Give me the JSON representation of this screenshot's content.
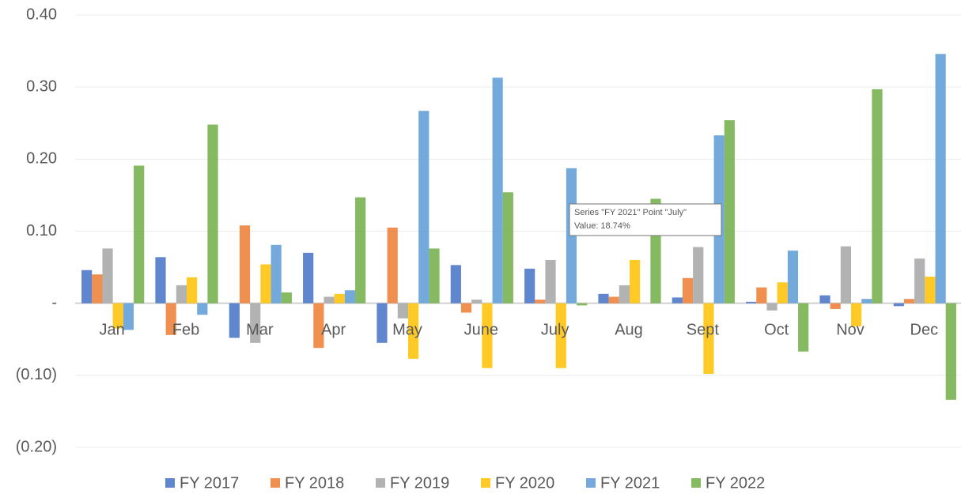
{
  "chart_data": {
    "type": "bar",
    "categories": [
      "Jan",
      "Feb",
      "Mar",
      "Apr",
      "May",
      "June",
      "July",
      "Aug",
      "Sept",
      "Oct",
      "Nov",
      "Dec"
    ],
    "series": [
      {
        "name": "FY 2017",
        "color": "#4472c4",
        "values": [
          0.046,
          0.064,
          -0.048,
          0.07,
          -0.055,
          0.053,
          0.048,
          0.013,
          0.008,
          0.002,
          0.011,
          -0.004
        ]
      },
      {
        "name": "FY 2018",
        "color": "#ed7d31",
        "values": [
          0.04,
          -0.044,
          0.108,
          -0.062,
          0.105,
          -0.013,
          0.005,
          0.009,
          0.035,
          0.022,
          -0.008,
          0.006
        ]
      },
      {
        "name": "FY 2019",
        "color": "#a5a5a5",
        "values": [
          0.076,
          0.025,
          -0.055,
          0.009,
          -0.021,
          0.005,
          0.06,
          0.025,
          0.078,
          -0.01,
          0.079,
          0.062
        ]
      },
      {
        "name": "FY 2020",
        "color": "#ffc000",
        "values": [
          -0.035,
          0.036,
          0.054,
          0.013,
          -0.077,
          -0.09,
          -0.09,
          0.06,
          -0.098,
          0.029,
          -0.032,
          0.037
        ]
      },
      {
        "name": "FY 2021",
        "color": "#5b9bd5",
        "values": [
          -0.037,
          -0.016,
          0.081,
          0.018,
          0.267,
          0.313,
          0.1874,
          0.0,
          0.233,
          0.073,
          0.006,
          0.346
        ]
      },
      {
        "name": "FY 2022",
        "color": "#70ad47",
        "values": [
          0.191,
          0.248,
          0.015,
          0.147,
          0.076,
          0.154,
          -0.003,
          0.145,
          0.254,
          -0.067,
          0.297,
          -0.134
        ]
      }
    ],
    "ylim": [
      -0.2,
      0.4
    ],
    "yticks": [
      {
        "value": 0.4,
        "label": "0.40"
      },
      {
        "value": 0.3,
        "label": "0.30"
      },
      {
        "value": 0.2,
        "label": "0.20"
      },
      {
        "value": 0.1,
        "label": "0.10"
      },
      {
        "value": 0,
        "label": "-"
      },
      {
        "value": -0.1,
        "label": "(0.10)"
      },
      {
        "value": -0.2,
        "label": "(0.20)"
      }
    ],
    "grid": true,
    "legend": "bottom",
    "annotations": [
      "Series \"FY 2021\" Point \"July\"",
      "Value: 18.74%"
    ]
  }
}
